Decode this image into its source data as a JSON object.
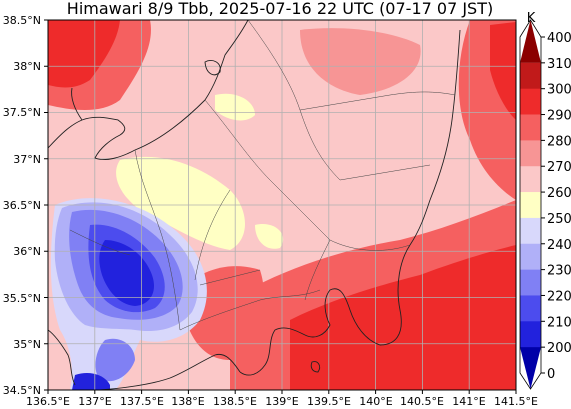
{
  "title": "Himawari 8/9 Tbb, 2025-07-16 22 UTC (07-17 07 JST)",
  "map": {
    "lon_range": [
      136.5,
      141.5
    ],
    "lat_range": [
      34.5,
      38.5
    ],
    "lon_ticks": [
      "136.5°E",
      "137°E",
      "137.5°E",
      "138°E",
      "138.5°E",
      "139°E",
      "139.5°E",
      "140°E",
      "140.5°E",
      "141°E",
      "141.5°E"
    ],
    "lat_ticks": [
      "34.5°N",
      "35°N",
      "35.5°N",
      "36°N",
      "36.5°N",
      "37°N",
      "37.5°N",
      "38°N",
      "38.5°N"
    ],
    "grid": true
  },
  "colorbar": {
    "unit": "K",
    "labels": [
      "400",
      "310",
      "300",
      "290",
      "280",
      "270",
      "260",
      "250",
      "240",
      "230",
      "220",
      "210",
      "200",
      "0"
    ],
    "colors": [
      "#8b0000",
      "#c11a1a",
      "#ee2b2b",
      "#f56060",
      "#f79595",
      "#fbc8c8",
      "#ffffc4",
      "#d8d8fb",
      "#b0b0f8",
      "#8080f4",
      "#4c4cee",
      "#2222dd",
      "#0000a8"
    ],
    "extend": "both"
  }
}
